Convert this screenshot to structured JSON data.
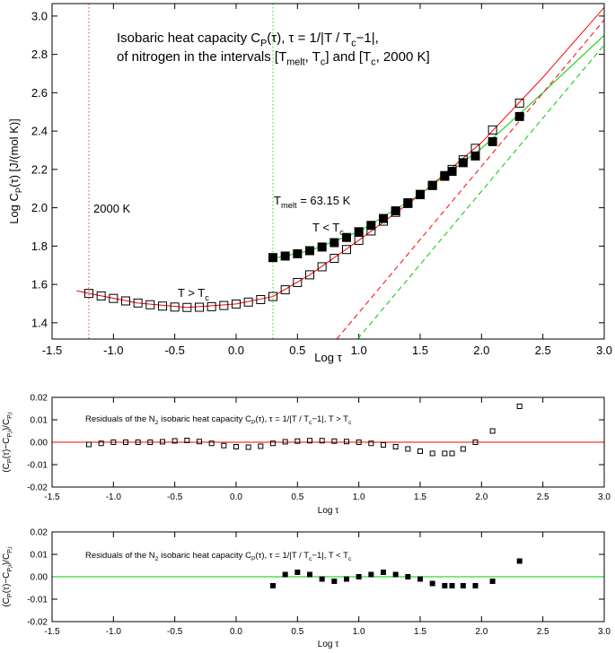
{
  "chart_data": [
    {
      "type": "scatter",
      "title": [
        [
          "Isobaric heat capacity C",
          {
            "sub": "P"
          },
          "(τ), τ = 1/|T / T",
          {
            "sub": "c"
          },
          "−1|,"
        ],
        [
          "of nitrogen in the intervals [T",
          {
            "sub": "melt"
          },
          ", T",
          {
            "sub": "c"
          },
          "] and [T",
          {
            "sub": "c"
          },
          ", 2000 K]"
        ]
      ],
      "xlabel": [
        "Log τ"
      ],
      "ylabel": [
        "Log C",
        {
          "sub": "P"
        },
        "(τ) [J/(mol K)]"
      ],
      "annotations": [
        [
          "2000 K"
        ],
        [
          "T",
          {
            "sub": "melt"
          },
          " = 63.15 K"
        ],
        [
          "T < T",
          {
            "sub": "c"
          }
        ],
        [
          "T > T",
          {
            "sub": "c"
          }
        ]
      ],
      "xlim": [
        -1.5,
        3.0
      ],
      "ylim": [
        1.315,
        3.065
      ],
      "xticks": [
        -1.5,
        {
          "value": -1,
          "label": "-1.0"
        },
        -0.5,
        {
          "value": 0,
          "label": "0.0"
        },
        0.5,
        {
          "value": 1,
          "label": "1.0"
        },
        1.5,
        {
          "value": 2,
          "label": "2.0"
        },
        2.5,
        {
          "value": 3,
          "label": "3.0"
        }
      ],
      "yticks": [
        1.4,
        1.6,
        1.8,
        {
          "value": 2,
          "label": "2.0"
        },
        2.2,
        2.4,
        2.6,
        2.8,
        {
          "value": 3,
          "label": "3.0"
        }
      ],
      "vlines": [
        {
          "x": -1.2,
          "color": "#ff3030"
        },
        {
          "x": 0.3,
          "color": "#30d030"
        }
      ],
      "series": [
        {
          "color": "#ff0000",
          "line": "solid",
          "x": [
            -1.3,
            -1.2,
            -0.8,
            -0.4,
            0,
            0.3,
            0.6,
            1.0,
            1.5,
            2.0,
            2.5,
            3.0
          ],
          "values": [
            1.567,
            1.553,
            1.503,
            1.48,
            1.498,
            1.537,
            1.65,
            1.83,
            2.068,
            2.34,
            2.68,
            3.045
          ]
        },
        {
          "color": "#00cc00",
          "line": "solid",
          "x": [
            0.3,
            0.6,
            1.0,
            1.5,
            2.0,
            2.5,
            3.0
          ],
          "values": [
            1.735,
            1.776,
            1.875,
            2.07,
            2.31,
            2.6,
            2.9
          ]
        },
        {
          "color": "#ff0000",
          "line": "dashed",
          "x": [
            0.82,
            3.0
          ],
          "values": [
            1.315,
            2.98
          ]
        },
        {
          "color": "#00cc00",
          "line": "dashed",
          "x": [
            0.99,
            3.0
          ],
          "values": [
            1.315,
            2.85
          ]
        },
        {
          "color": "#000000",
          "marker": "open-square",
          "x": [
            -1.2,
            -1.1,
            -1.0,
            -0.9,
            -0.8,
            -0.7,
            -0.6,
            -0.5,
            -0.4,
            -0.3,
            -0.2,
            -0.1,
            0.0,
            0.1,
            0.2,
            0.3,
            0.4,
            0.5,
            0.6,
            0.7,
            0.8,
            0.9,
            1.0,
            1.1,
            1.2,
            1.3,
            1.4,
            1.5,
            1.6,
            1.7,
            1.76,
            1.85,
            1.95,
            2.09,
            2.31
          ],
          "values": [
            1.553,
            1.54,
            1.527,
            1.514,
            1.503,
            1.494,
            1.487,
            1.482,
            1.48,
            1.481,
            1.484,
            1.49,
            1.498,
            1.508,
            1.521,
            1.537,
            1.572,
            1.61,
            1.65,
            1.692,
            1.736,
            1.782,
            1.83,
            1.879,
            1.93,
            1.976,
            2.022,
            2.068,
            2.117,
            2.168,
            2.2,
            2.25,
            2.31,
            2.406,
            2.546
          ]
        },
        {
          "color": "#000000",
          "marker": "filled-square",
          "x": [
            0.3,
            0.4,
            0.5,
            0.6,
            0.7,
            0.8,
            0.9,
            1.0,
            1.1,
            1.2,
            1.3,
            1.4,
            1.5,
            1.6,
            1.7,
            1.76,
            1.85,
            1.95,
            2.09,
            2.31
          ],
          "values": [
            1.74,
            1.748,
            1.76,
            1.776,
            1.795,
            1.818,
            1.845,
            1.875,
            1.908,
            1.944,
            1.984,
            2.026,
            2.07,
            2.116,
            2.164,
            2.19,
            2.235,
            2.27,
            2.345,
            2.476
          ]
        }
      ]
    },
    {
      "type": "scatter",
      "title": [
        [
          "Residuals of the N",
          {
            "sub": "2"
          },
          " isobaric heat capacity C",
          {
            "sub": "P"
          },
          "(τ), τ = 1/|T / T",
          {
            "sub": "c"
          },
          "−1|, T > T",
          {
            "sub": "c"
          }
        ]
      ],
      "xlabel": [
        "Log τ"
      ],
      "ylabel": [
        "(C",
        {
          "sub": "P"
        },
        "(τ)−C",
        {
          "sub": "P,i"
        },
        ")/C",
        {
          "sub": "P,i"
        }
      ],
      "xlim": [
        -1.5,
        3.0
      ],
      "ylim": [
        -0.02,
        0.02
      ],
      "xticks": [
        -1.5,
        {
          "value": -1,
          "label": "-1.0"
        },
        -0.5,
        {
          "value": 0,
          "label": "0.0"
        },
        0.5,
        {
          "value": 1,
          "label": "1.0"
        },
        1.5,
        {
          "value": 2,
          "label": "2.0"
        },
        2.5,
        {
          "value": 3,
          "label": "3.0"
        }
      ],
      "yticks": [
        -0.02,
        -0.01,
        {
          "value": 0,
          "label": "0.00"
        },
        0.01,
        0.02
      ],
      "hlines": [
        {
          "y": 0,
          "color": "#ff0000"
        }
      ],
      "series": [
        {
          "color": "#000000",
          "marker": "open-square",
          "x": [
            -1.2,
            -1.1,
            -1.0,
            -0.9,
            -0.8,
            -0.7,
            -0.6,
            -0.5,
            -0.4,
            -0.3,
            -0.2,
            -0.1,
            0.0,
            0.1,
            0.2,
            0.3,
            0.4,
            0.5,
            0.6,
            0.7,
            0.8,
            0.9,
            1.0,
            1.1,
            1.2,
            1.3,
            1.4,
            1.5,
            1.6,
            1.7,
            1.76,
            1.85,
            1.95,
            2.09,
            2.31
          ],
          "values": [
            -0.001,
            -0.0005,
            0,
            0,
            0,
            0,
            0.0002,
            0.0006,
            0.0008,
            0.0003,
            -0.0005,
            -0.0015,
            -0.002,
            -0.0022,
            -0.0018,
            -0.0005,
            0.0002,
            0.0005,
            0.0007,
            0.0007,
            0.0005,
            0.0003,
            0,
            -0.0005,
            -0.0012,
            -0.002,
            -0.003,
            -0.004,
            -0.005,
            -0.005,
            -0.005,
            -0.003,
            0,
            0.005,
            0.016
          ]
        }
      ]
    },
    {
      "type": "scatter",
      "title": [
        [
          "Residuals of the N",
          {
            "sub": "2"
          },
          " isobaric heat capacity C",
          {
            "sub": "P"
          },
          "(τ), τ = 1/|T / T",
          {
            "sub": "c"
          },
          "−1|, T < T",
          {
            "sub": "c"
          }
        ]
      ],
      "xlabel": [
        "Log τ"
      ],
      "ylabel": [
        "(C",
        {
          "sub": "P"
        },
        "(τ)−C",
        {
          "sub": "P,i"
        },
        ")/C",
        {
          "sub": "P,i"
        }
      ],
      "xlim": [
        -1.5,
        3.0
      ],
      "ylim": [
        -0.02,
        0.02
      ],
      "xticks": [
        -1.5,
        {
          "value": -1,
          "label": "-1.0"
        },
        -0.5,
        {
          "value": 0,
          "label": "0.0"
        },
        0.5,
        {
          "value": 1,
          "label": "1.0"
        },
        1.5,
        {
          "value": 2,
          "label": "2.0"
        },
        2.5,
        {
          "value": 3,
          "label": "3.0"
        }
      ],
      "yticks": [
        -0.02,
        -0.01,
        {
          "value": 0,
          "label": "0.00"
        },
        0.01,
        0.02
      ],
      "hlines": [
        {
          "y": 0,
          "color": "#00cc00"
        }
      ],
      "series": [
        {
          "color": "#000000",
          "marker": "filled-square",
          "x": [
            0.3,
            0.4,
            0.5,
            0.6,
            0.7,
            0.8,
            0.9,
            1.0,
            1.1,
            1.2,
            1.3,
            1.4,
            1.5,
            1.6,
            1.7,
            1.76,
            1.85,
            1.95,
            2.09,
            2.31
          ],
          "values": [
            -0.004,
            0.001,
            0.002,
            0.001,
            -0.001,
            -0.002,
            -0.001,
            0,
            0.001,
            0.002,
            0.001,
            0,
            -0.001,
            -0.003,
            -0.004,
            -0.004,
            -0.004,
            -0.004,
            -0.002,
            0.007
          ]
        }
      ]
    }
  ]
}
